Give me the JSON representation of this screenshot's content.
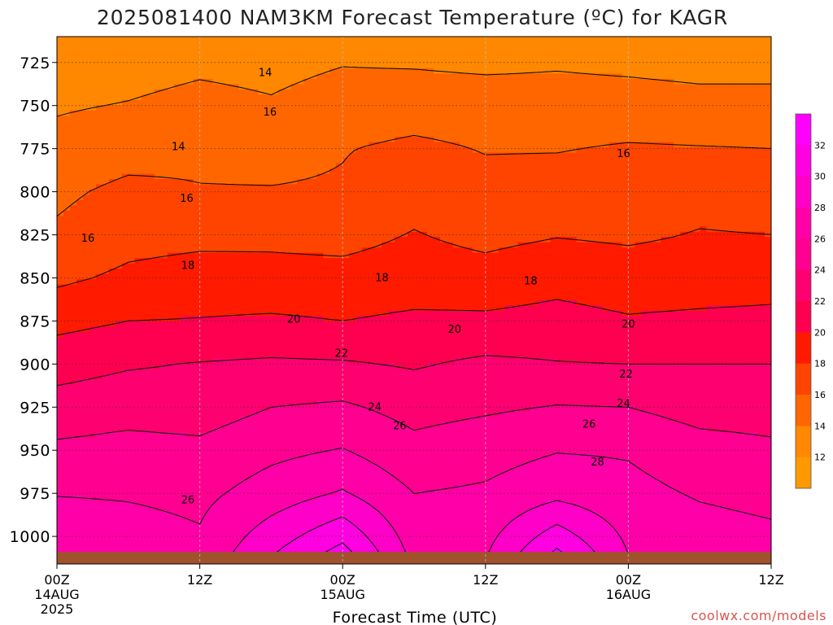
{
  "chart_data": {
    "type": "heatmap",
    "title": "2025081400 NAM3KM Forecast Temperature (ºC) for KAGR",
    "xlabel": "Forecast Time (UTC)",
    "x_ticks": [
      {
        "hour": 0,
        "label": "00Z",
        "sub1": "14AUG",
        "sub2": "2025"
      },
      {
        "hour": 12,
        "label": "12Z",
        "sub1": "",
        "sub2": ""
      },
      {
        "hour": 24,
        "label": "00Z",
        "sub1": "15AUG",
        "sub2": ""
      },
      {
        "hour": 36,
        "label": "12Z",
        "sub1": "",
        "sub2": ""
      },
      {
        "hour": 48,
        "label": "00Z",
        "sub1": "16AUG",
        "sub2": ""
      },
      {
        "hour": 60,
        "label": "12Z",
        "sub1": "",
        "sub2": ""
      }
    ],
    "x_range_hours": [
      0,
      60
    ],
    "ylabel": "",
    "y_ticks": [
      725,
      750,
      775,
      800,
      825,
      850,
      875,
      900,
      925,
      950,
      975,
      1000
    ],
    "y_range_hPa": [
      710,
      1016
    ],
    "ground_level_hPa": 1009,
    "contour_interval": 2,
    "colorbar": {
      "levels": [
        32,
        30,
        28,
        26,
        24,
        22,
        20,
        18,
        16,
        14,
        12
      ],
      "colors": [
        "#ff00ff",
        "#ff00e0",
        "#ff00c8",
        "#ff00a8",
        "#ff0090",
        "#ff0070",
        "#ff0050",
        "#ff1a00",
        "#ff4400",
        "#ff6600",
        "#ff8800",
        "#ff9900"
      ]
    },
    "grid": true,
    "temperature_profiles": {
      "description_levels_hPa": [
        725,
        750,
        775,
        800,
        825,
        850,
        875,
        900,
        925,
        950,
        975,
        1000
      ],
      "columns": [
        {
          "hour": 0,
          "t": [
            12.8,
            13.8,
            14.6,
            15.6,
            16.3,
            17.6,
            19.4,
            21.2,
            22.8,
            24.4,
            25.9,
            27.3
          ]
        },
        {
          "hour": 6,
          "t": [
            13.2,
            14.1,
            15.2,
            16.5,
            17.3,
            18.4,
            20.0,
            21.8,
            23.2,
            24.7,
            25.8,
            26.8
          ]
        },
        {
          "hour": 12,
          "t": [
            13.6,
            14.6,
            15.6,
            16.1,
            17.5,
            18.8,
            20.1,
            22.1,
            23.0,
            24.5,
            25.5,
            26.2
          ]
        },
        {
          "hour": 18,
          "t": [
            13.4,
            14.2,
            15.4,
            16.1,
            17.6,
            18.6,
            20.3,
            22.3,
            24.0,
            25.5,
            26.9,
            29.0
          ]
        },
        {
          "hour": 24,
          "t": [
            13.9,
            14.9,
            15.9,
            16.2,
            17.4,
            18.6,
            20.0,
            22.2,
            24.3,
            26.1,
            28.2,
            31.5
          ]
        },
        {
          "hour": 30,
          "t": [
            13.8,
            15.1,
            16.4,
            17.3,
            18.1,
            18.9,
            20.4,
            21.8,
            23.3,
            24.6,
            26.0,
            27.0
          ]
        },
        {
          "hour": 36,
          "t": [
            13.6,
            15.0,
            15.9,
            16.6,
            17.5,
            18.7,
            20.4,
            22.4,
            23.7,
            25.2,
            26.3,
            27.4
          ]
        },
        {
          "hour": 42,
          "t": [
            13.8,
            14.8,
            15.9,
            16.9,
            17.9,
            19.3,
            20.7,
            22.1,
            24.1,
            25.9,
            27.4,
            31.0
          ]
        },
        {
          "hour": 48,
          "t": [
            13.6,
            14.8,
            16.2,
            17.1,
            17.7,
            18.9,
            20.2,
            22.0,
            24.0,
            25.8,
            26.6,
            27.6
          ]
        },
        {
          "hour": 54,
          "t": [
            13.4,
            14.6,
            16.1,
            17.4,
            18.1,
            19.0,
            20.4,
            22.0,
            23.2,
            24.8,
            25.8,
            26.8
          ]
        },
        {
          "hour": 60,
          "t": [
            13.2,
            14.8,
            16.0,
            17.2,
            18.0,
            19.2,
            20.5,
            22.0,
            23.1,
            24.4,
            25.4,
            26.4
          ]
        }
      ]
    },
    "contour_labels": [
      {
        "hour": 17.5,
        "p": 731,
        "text": "14"
      },
      {
        "hour": 10.2,
        "p": 774,
        "text": "14"
      },
      {
        "hour": 17.9,
        "p": 754,
        "text": "16"
      },
      {
        "hour": 47.6,
        "p": 778,
        "text": "16"
      },
      {
        "hour": 10.9,
        "p": 804,
        "text": "16"
      },
      {
        "hour": 2.6,
        "p": 827,
        "text": "16"
      },
      {
        "hour": 11.0,
        "p": 843,
        "text": "18"
      },
      {
        "hour": 27.3,
        "p": 850,
        "text": "18"
      },
      {
        "hour": 39.8,
        "p": 852,
        "text": "18"
      },
      {
        "hour": 19.9,
        "p": 874,
        "text": "20"
      },
      {
        "hour": 48.0,
        "p": 877,
        "text": "20"
      },
      {
        "hour": 33.4,
        "p": 880,
        "text": "20"
      },
      {
        "hour": 23.9,
        "p": 894,
        "text": "22"
      },
      {
        "hour": 47.8,
        "p": 906,
        "text": "22"
      },
      {
        "hour": 26.7,
        "p": 925,
        "text": "24"
      },
      {
        "hour": 47.6,
        "p": 923,
        "text": "24"
      },
      {
        "hour": 28.8,
        "p": 936,
        "text": "26"
      },
      {
        "hour": 44.7,
        "p": 935,
        "text": "26"
      },
      {
        "hour": 11.0,
        "p": 979,
        "text": "26"
      },
      {
        "hour": 45.4,
        "p": 957,
        "text": "28"
      }
    ]
  },
  "footer": {
    "credit": "coolwx.com/models"
  }
}
